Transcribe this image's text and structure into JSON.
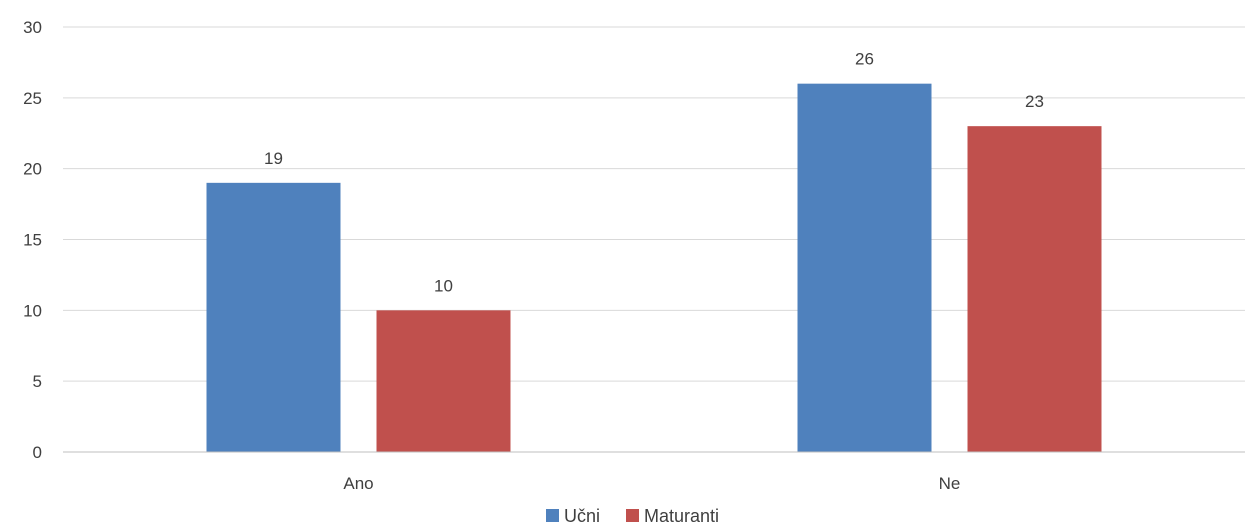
{
  "chart_data": {
    "type": "bar",
    "title": "",
    "categories": [
      "Ano",
      "Ne"
    ],
    "series": [
      {
        "name": "Učni",
        "values": [
          19,
          26
        ],
        "color": "#4f81bd"
      },
      {
        "name": "Maturanti",
        "values": [
          10,
          23
        ],
        "color": "#c0504d"
      }
    ],
    "ylim": [
      0,
      30
    ],
    "yticks": [
      "0",
      "5",
      "10",
      "15",
      "20",
      "25",
      "30"
    ],
    "xlabel": "",
    "ylabel": "",
    "grid": true,
    "legend": "bottom-center",
    "data_labels": true
  }
}
